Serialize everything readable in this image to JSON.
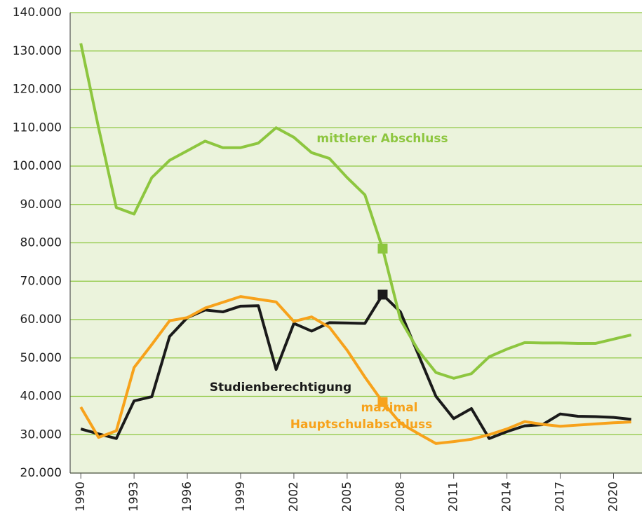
{
  "chart_data": {
    "type": "line",
    "x": [
      1990,
      1991,
      1992,
      1993,
      1994,
      1995,
      1996,
      1997,
      1998,
      1999,
      2000,
      2001,
      2002,
      2003,
      2004,
      2005,
      2006,
      2007,
      2008,
      2009,
      2010,
      2011,
      2012,
      2013,
      2014,
      2015,
      2016,
      2017,
      2018,
      2019,
      2020,
      2021
    ],
    "series": [
      {
        "name": "mittlerer Abschluss",
        "color": "#8dc63f",
        "values": [
          132000,
          110000,
          89200,
          87500,
          97000,
          101500,
          104000,
          106500,
          104800,
          104800,
          106000,
          110000,
          107500,
          103500,
          102000,
          97000,
          92500,
          78500,
          60000,
          52000,
          46200,
          44700,
          45900,
          50300,
          52300,
          54000,
          53900,
          53900,
          53800,
          53800,
          54900,
          56000
        ]
      },
      {
        "name": "Studienberechtigung",
        "color": "#1a1a1a",
        "values": [
          31500,
          30200,
          29000,
          38800,
          39900,
          55600,
          60500,
          62500,
          62000,
          63500,
          63600,
          47000,
          59000,
          57000,
          59200,
          59100,
          59000,
          66500,
          62000,
          51000,
          40000,
          34200,
          36800,
          29000,
          30800,
          32300,
          32600,
          35400,
          34800,
          34700,
          34500,
          34000
        ]
      },
      {
        "name": "maximal Hauptschulabschluss",
        "color": "#f7a21b",
        "values": [
          37200,
          29300,
          31000,
          47500,
          53500,
          59700,
          60500,
          63000,
          64500,
          66000,
          65300,
          64600,
          59500,
          60700,
          58000,
          52000,
          45000,
          38500,
          33000,
          30300,
          27700,
          28200,
          28800,
          30000,
          31500,
          33400,
          32700,
          32200,
          32500,
          32800,
          33100,
          33300
        ]
      }
    ],
    "marker_x": 2007,
    "xlim": [
      1989.4,
      2021.6
    ],
    "xticks": [
      1990,
      1993,
      1996,
      1999,
      2002,
      2005,
      2008,
      2011,
      2014,
      2017,
      2020
    ],
    "ylim": [
      20000,
      140000
    ],
    "yticks": [
      {
        "value": 20000,
        "label": "20.000"
      },
      {
        "value": 30000,
        "label": "30.000"
      },
      {
        "value": 40000,
        "label": "40.000"
      },
      {
        "value": 50000,
        "label": "50.000"
      },
      {
        "value": 60000,
        "label": "60.000"
      },
      {
        "value": 70000,
        "label": "70.000"
      },
      {
        "value": 80000,
        "label": "80.000"
      },
      {
        "value": 90000,
        "label": "90.000"
      },
      {
        "value": 100000,
        "label": "100.000"
      },
      {
        "value": 110000,
        "label": "110.000"
      },
      {
        "value": 120000,
        "label": "120.000"
      },
      {
        "value": 130000,
        "label": "130.000"
      },
      {
        "value": 140000,
        "label": "140.000"
      }
    ],
    "grid": true,
    "background": "#ebf3dc"
  }
}
